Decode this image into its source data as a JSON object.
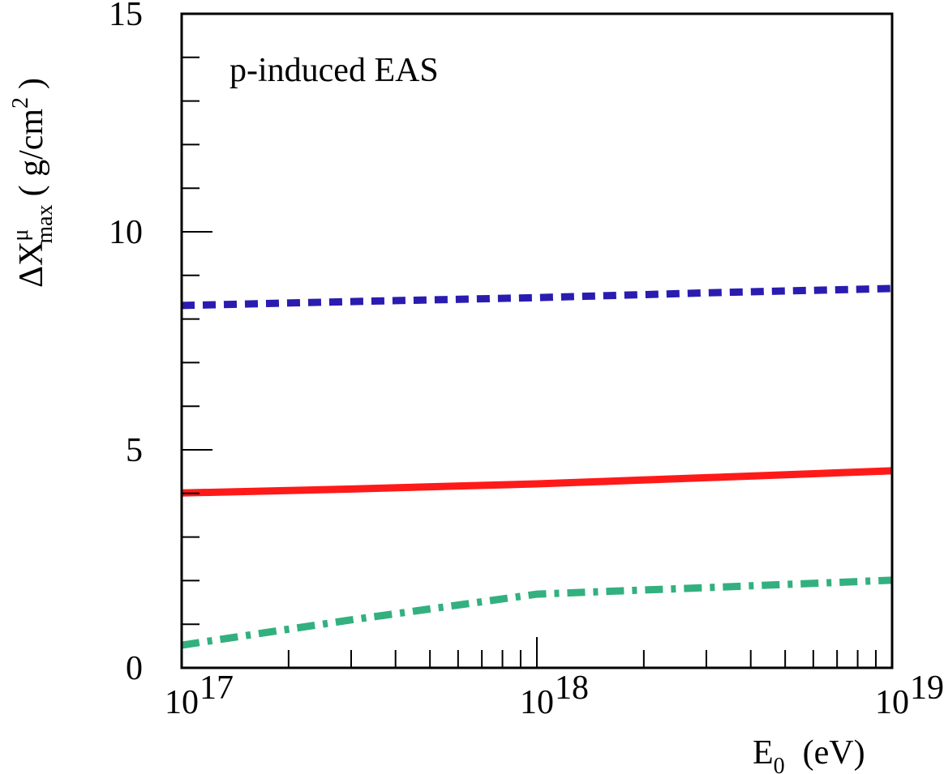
{
  "chart_data": {
    "type": "line",
    "annotation": "p-induced EAS",
    "ylabel": {
      "base": "ΔX",
      "sup": "μ",
      "sub": "max",
      "unit": "( g/cm",
      "unit_sup": "2",
      "close": ")"
    },
    "xlabel": {
      "base": "E",
      "sub": "0",
      "unit": "(eV)"
    },
    "x": [
      1e+17,
      3e+17,
      1e+18,
      3e+18,
      1e+19
    ],
    "xscale": "log",
    "xlim": [
      1e+17,
      1e+19
    ],
    "xticks": [
      {
        "value": 1e+17,
        "label": "10",
        "sup": "17"
      },
      {
        "value": 1e+18,
        "label": "10",
        "sup": "18"
      },
      {
        "value": 1e+19,
        "label": "10",
        "sup": "19"
      }
    ],
    "xminorticks": [
      2e+17,
      3e+17,
      4e+17,
      5e+17,
      6e+17,
      7e+17,
      8e+17,
      9e+17,
      2e+18,
      3e+18,
      4e+18,
      5e+18,
      6e+18,
      7e+18,
      8e+18,
      9e+18
    ],
    "ylim": [
      0,
      15
    ],
    "yticks": [
      0,
      5,
      10,
      15
    ],
    "yminorticks": [
      1,
      2,
      3,
      4,
      6,
      7,
      8,
      9,
      11,
      12,
      13,
      14
    ],
    "series": [
      {
        "color": "#2a1cb0",
        "style": "dashed",
        "values": [
          8.31,
          8.4,
          8.49,
          8.6,
          8.7
        ]
      },
      {
        "color": "#ff1a1a",
        "style": "solid",
        "values": [
          4.01,
          4.1,
          4.22,
          4.36,
          4.52
        ]
      },
      {
        "color": "#33b07f",
        "style": "dashdot",
        "values": [
          0.52,
          1.1,
          1.69,
          1.84,
          2.01
        ]
      }
    ]
  }
}
